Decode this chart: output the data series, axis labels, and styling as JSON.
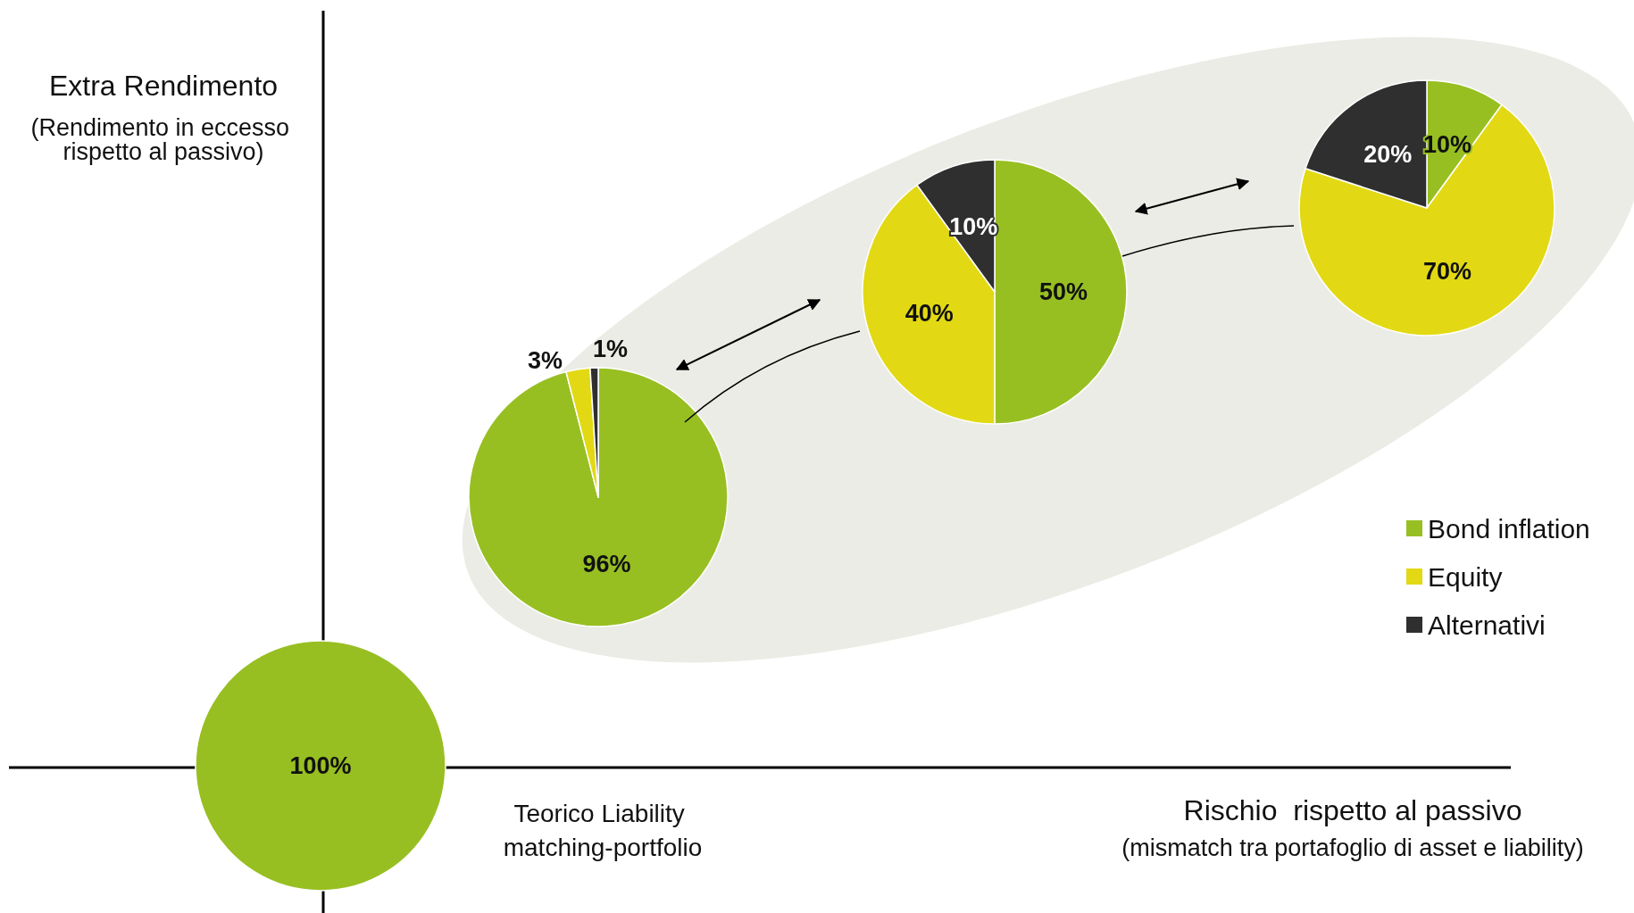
{
  "chart_data": [
    {
      "type": "other",
      "xlabel": "Rischio  rispetto al passivo",
      "ylabel": "Extra Rendimento",
      "annotations": [
        "(Rendimento in eccesso rispetto al passivo)",
        "(mismatch tra portafoglio di asset e liability)"
      ]
    },
    {
      "type": "pie",
      "categories": [
        null
      ],
      "values": [
        100
      ],
      "colors": [
        "#97bf22"
      ],
      "value_labels": [
        "100%"
      ],
      "annotations": [
        "Teorico Liability matching-portfolio"
      ]
    },
    {
      "type": "pie",
      "categories": [
        null,
        null,
        null
      ],
      "values": [
        96,
        3,
        1
      ],
      "colors": [
        "#97bf22",
        "#e2d914",
        "#2f2f2f"
      ],
      "value_labels": [
        "96%",
        "3%",
        "1%"
      ]
    },
    {
      "type": "pie",
      "categories": [
        null,
        null,
        null
      ],
      "values": [
        50,
        40,
        10
      ],
      "colors": [
        "#97bf22",
        "#e2d914",
        "#2f2f2f"
      ],
      "value_labels": [
        "50%",
        "40%",
        "10%"
      ]
    },
    {
      "type": "pie",
      "categories": [
        "Bond inflation",
        "Equity",
        "Alternativi"
      ],
      "values": [
        10,
        70,
        20
      ],
      "colors": [
        "#97bf22",
        "#e2d914",
        "#2f2f2f"
      ],
      "value_labels": [
        "10%",
        "70%",
        "20%"
      ],
      "legend": "right"
    }
  ]
}
